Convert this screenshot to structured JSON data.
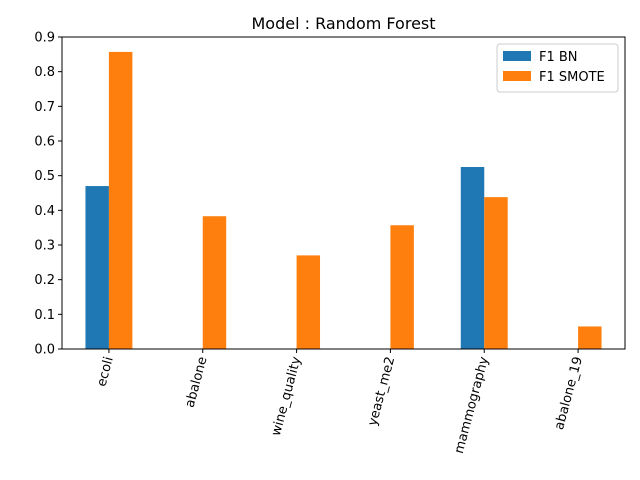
{
  "chart_data": {
    "type": "bar",
    "title": "Model : Random Forest",
    "xlabel": "",
    "ylabel": "",
    "categories": [
      "ecoli",
      "abalone",
      "wine_quality",
      "yeast_me2",
      "mammography",
      "abalone_19"
    ],
    "series": [
      {
        "name": "F1 BN",
        "color": "#1f77b4",
        "values": [
          0.47,
          0.0,
          0.0,
          0.0,
          0.525,
          0.0
        ]
      },
      {
        "name": "F1 SMOTE",
        "color": "#ff7f0e",
        "values": [
          0.857,
          0.383,
          0.27,
          0.357,
          0.438,
          0.065
        ]
      }
    ],
    "ylim": [
      0,
      0.9
    ],
    "yticks": [
      "0.0",
      "0.1",
      "0.2",
      "0.3",
      "0.4",
      "0.5",
      "0.6",
      "0.7",
      "0.8",
      "0.9"
    ],
    "grid": false,
    "legend_position": "top-right"
  }
}
